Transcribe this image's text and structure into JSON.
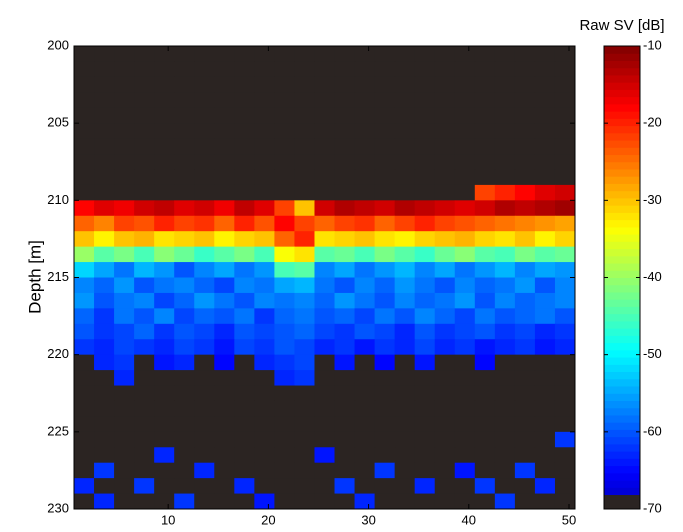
{
  "chart_data": {
    "type": "heatmap",
    "colorbar_label": "Raw  SV [dB]",
    "ylabel": "Depth [m]",
    "colormap": "jet",
    "background_color": "#2b2422",
    "xlim": [
      0.6,
      50.6
    ],
    "xticks": [
      10,
      20,
      30,
      40,
      50
    ],
    "ylim": [
      200,
      230
    ],
    "yticks": [
      200,
      205,
      210,
      215,
      220,
      225,
      230
    ],
    "clim": [
      -70,
      -10
    ],
    "cticks": [
      -10,
      -20,
      -30,
      -40,
      -50,
      -60,
      -70
    ],
    "xbins": [
      0.6,
      2.6,
      4.6,
      6.6,
      8.6,
      10.6,
      12.6,
      14.6,
      16.6,
      18.6,
      20.6,
      22.6,
      24.6,
      26.6,
      28.6,
      30.6,
      32.6,
      34.6,
      36.6,
      38.6,
      40.6,
      42.6,
      44.6,
      46.6,
      48.6,
      50.6
    ],
    "ybins": [
      200,
      201,
      202,
      203,
      204,
      205,
      206,
      207,
      208,
      209,
      210,
      211,
      212,
      213,
      214,
      215,
      216,
      217,
      218,
      219,
      220,
      221,
      222,
      223,
      224,
      225,
      226,
      227,
      228,
      229,
      230
    ],
    "z": [
      [
        -70,
        -70,
        -70,
        -70,
        -70,
        -70,
        -70,
        -70,
        -70,
        -70,
        -70,
        -70,
        -70,
        -70,
        -70,
        -70,
        -70,
        -70,
        -70,
        -70,
        -70,
        -70,
        -70,
        -70,
        -70
      ],
      [
        -70,
        -70,
        -70,
        -70,
        -70,
        -70,
        -70,
        -70,
        -70,
        -70,
        -70,
        -70,
        -70,
        -70,
        -70,
        -70,
        -70,
        -70,
        -70,
        -70,
        -70,
        -70,
        -70,
        -70,
        -70
      ],
      [
        -70,
        -70,
        -70,
        -70,
        -70,
        -70,
        -70,
        -70,
        -70,
        -70,
        -70,
        -70,
        -70,
        -70,
        -70,
        -70,
        -70,
        -70,
        -70,
        -70,
        -70,
        -70,
        -70,
        -70,
        -70
      ],
      [
        -70,
        -70,
        -70,
        -70,
        -70,
        -70,
        -70,
        -70,
        -70,
        -70,
        -70,
        -70,
        -70,
        -70,
        -70,
        -70,
        -70,
        -70,
        -70,
        -70,
        -70,
        -70,
        -70,
        -70,
        -70
      ],
      [
        -70,
        -70,
        -70,
        -70,
        -70,
        -70,
        -70,
        -70,
        -70,
        -70,
        -70,
        -70,
        -70,
        -70,
        -70,
        -70,
        -70,
        -70,
        -70,
        -70,
        -70,
        -70,
        -70,
        -70,
        -70
      ],
      [
        -70,
        -70,
        -70,
        -70,
        -70,
        -70,
        -70,
        -70,
        -70,
        -70,
        -70,
        -70,
        -70,
        -70,
        -70,
        -70,
        -70,
        -70,
        -70,
        -70,
        -70,
        -70,
        -70,
        -70,
        -70
      ],
      [
        -70,
        -70,
        -70,
        -70,
        -70,
        -70,
        -70,
        -70,
        -70,
        -70,
        -70,
        -70,
        -70,
        -70,
        -70,
        -70,
        -70,
        -70,
        -70,
        -70,
        -70,
        -70,
        -70,
        -70,
        -70
      ],
      [
        -70,
        -70,
        -70,
        -70,
        -70,
        -70,
        -70,
        -70,
        -70,
        -70,
        -70,
        -70,
        -70,
        -70,
        -70,
        -70,
        -70,
        -70,
        -70,
        -70,
        -70,
        -70,
        -70,
        -70,
        -70
      ],
      [
        -70,
        -70,
        -70,
        -70,
        -70,
        -70,
        -70,
        -70,
        -70,
        -70,
        -70,
        -70,
        -70,
        -70,
        -70,
        -70,
        -70,
        -70,
        -70,
        -70,
        -70,
        -70,
        -70,
        -70,
        -70
      ],
      [
        -70,
        -70,
        -70,
        -70,
        -70,
        -70,
        -70,
        -70,
        -70,
        -70,
        -70,
        -70,
        -70,
        -70,
        -70,
        -70,
        -70,
        -70,
        -70,
        -70,
        -22,
        -20,
        -18,
        -16,
        -15
      ],
      [
        -18,
        -16,
        -17,
        -15,
        -14,
        -16,
        -15,
        -17,
        -14,
        -16,
        -22,
        -30,
        -15,
        -13,
        -14,
        -15,
        -13,
        -14,
        -15,
        -16,
        -15,
        -13,
        -14,
        -13,
        -12
      ],
      [
        -24,
        -26,
        -22,
        -23,
        -20,
        -22,
        -21,
        -24,
        -20,
        -23,
        -18,
        -22,
        -24,
        -22,
        -21,
        -24,
        -22,
        -20,
        -22,
        -23,
        -24,
        -25,
        -26,
        -27,
        -28
      ],
      [
        -30,
        -33,
        -30,
        -29,
        -32,
        -31,
        -30,
        -33,
        -31,
        -30,
        -24,
        -20,
        -32,
        -31,
        -30,
        -32,
        -33,
        -31,
        -30,
        -29,
        -31,
        -32,
        -30,
        -33,
        -31
      ],
      [
        -40,
        -44,
        -42,
        -45,
        -41,
        -43,
        -46,
        -44,
        -42,
        -45,
        -34,
        -32,
        -44,
        -43,
        -45,
        -42,
        -44,
        -46,
        -43,
        -41,
        -44,
        -45,
        -42,
        -44,
        -43
      ],
      [
        -52,
        -55,
        -58,
        -54,
        -56,
        -60,
        -57,
        -55,
        -58,
        -56,
        -45,
        -44,
        -57,
        -55,
        -58,
        -56,
        -54,
        -57,
        -55,
        -58,
        -56,
        -54,
        -57,
        -55,
        -56
      ],
      [
        -57,
        -59,
        -56,
        -60,
        -58,
        -57,
        -59,
        -61,
        -57,
        -58,
        -55,
        -54,
        -58,
        -60,
        -57,
        -59,
        -56,
        -58,
        -60,
        -57,
        -59,
        -58,
        -56,
        -60,
        -57
      ],
      [
        -56,
        -60,
        -58,
        -57,
        -61,
        -59,
        -56,
        -58,
        -60,
        -57,
        -58,
        -57,
        -59,
        -56,
        -58,
        -60,
        -57,
        -59,
        -58,
        -56,
        -60,
        -57,
        -59,
        -58,
        -57
      ],
      [
        -59,
        -62,
        -58,
        -60,
        -57,
        -61,
        -59,
        -60,
        -58,
        -62,
        -59,
        -58,
        -60,
        -59,
        -61,
        -58,
        -60,
        -57,
        -59,
        -61,
        -58,
        -60,
        -59,
        -58,
        -60
      ],
      [
        -60,
        -62,
        -61,
        -59,
        -62,
        -60,
        -61,
        -63,
        -60,
        -61,
        -60,
        -59,
        -61,
        -62,
        -60,
        -61,
        -63,
        -60,
        -62,
        -61,
        -60,
        -62,
        -61,
        -63,
        -62
      ],
      [
        -62,
        -63,
        -61,
        -62,
        -63,
        -61,
        -62,
        -64,
        -61,
        -62,
        -60,
        -61,
        -63,
        -62,
        -64,
        -62,
        -63,
        -61,
        -63,
        -62,
        -64,
        -63,
        -62,
        -64,
        -63
      ],
      [
        -70,
        -63,
        -62,
        -70,
        -64,
        -63,
        -70,
        -65,
        -70,
        -63,
        -62,
        -61,
        -70,
        -64,
        -70,
        -65,
        -70,
        -64,
        -70,
        -70,
        -65,
        -70,
        -70,
        -70,
        -70
      ],
      [
        -70,
        -70,
        -63,
        -70,
        -70,
        -70,
        -70,
        -70,
        -70,
        -70,
        -63,
        -62,
        -70,
        -70,
        -70,
        -70,
        -70,
        -70,
        -70,
        -70,
        -70,
        -70,
        -70,
        -70,
        -70
      ],
      [
        -70,
        -70,
        -70,
        -70,
        -70,
        -70,
        -70,
        -70,
        -70,
        -70,
        -70,
        -70,
        -70,
        -70,
        -70,
        -70,
        -70,
        -70,
        -70,
        -70,
        -70,
        -70,
        -70,
        -70,
        -70
      ],
      [
        -70,
        -70,
        -70,
        -70,
        -70,
        -70,
        -70,
        -70,
        -70,
        -70,
        -70,
        -70,
        -70,
        -70,
        -70,
        -70,
        -70,
        -70,
        -70,
        -70,
        -70,
        -70,
        -70,
        -70,
        -70
      ],
      [
        -70,
        -70,
        -70,
        -70,
        -70,
        -70,
        -70,
        -70,
        -70,
        -70,
        -70,
        -70,
        -70,
        -70,
        -70,
        -70,
        -70,
        -70,
        -70,
        -70,
        -70,
        -70,
        -70,
        -70,
        -70
      ],
      [
        -70,
        -70,
        -70,
        -70,
        -70,
        -70,
        -70,
        -70,
        -70,
        -70,
        -70,
        -70,
        -70,
        -70,
        -70,
        -70,
        -70,
        -70,
        -70,
        -70,
        -70,
        -70,
        -70,
        -70,
        -62
      ],
      [
        -70,
        -70,
        -70,
        -70,
        -63,
        -70,
        -70,
        -70,
        -70,
        -70,
        -70,
        -70,
        -64,
        -70,
        -70,
        -70,
        -70,
        -70,
        -70,
        -70,
        -70,
        -70,
        -70,
        -70,
        -70
      ],
      [
        -70,
        -62,
        -70,
        -70,
        -70,
        -70,
        -63,
        -70,
        -70,
        -70,
        -70,
        -70,
        -70,
        -70,
        -70,
        -62,
        -70,
        -70,
        -70,
        -64,
        -70,
        -70,
        -62,
        -70,
        -70
      ],
      [
        -63,
        -70,
        -70,
        -62,
        -70,
        -70,
        -70,
        -70,
        -63,
        -70,
        -70,
        -70,
        -70,
        -62,
        -70,
        -70,
        -70,
        -63,
        -70,
        -70,
        -62,
        -70,
        -70,
        -63,
        -70
      ],
      [
        -70,
        -63,
        -70,
        -70,
        -70,
        -62,
        -70,
        -70,
        -70,
        -64,
        -70,
        -70,
        -70,
        -70,
        -63,
        -70,
        -70,
        -70,
        -70,
        -70,
        -70,
        -62,
        -70,
        -70,
        -70
      ]
    ]
  }
}
